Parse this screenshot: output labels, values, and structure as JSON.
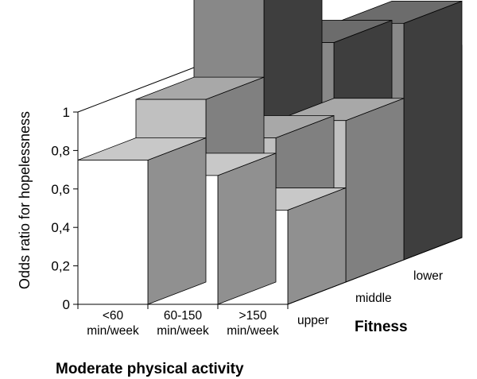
{
  "chart_data": {
    "type": "bar",
    "style": "3d",
    "ylabel": "Odds ratio for hopelessness",
    "xlabel": "Moderate physical activity",
    "zlabel": "Fitness",
    "ylim": [
      0,
      1
    ],
    "yticks": [
      "0",
      "0,2",
      "0,4",
      "0,6",
      "0,8",
      "1"
    ],
    "categories": [
      [
        "<60",
        "min/week"
      ],
      [
        "60-150",
        "min/week"
      ],
      [
        ">150",
        "min/week"
      ]
    ],
    "series": [
      {
        "name": "upper",
        "values": [
          0.75,
          0.67,
          0.49
        ],
        "colors": {
          "front": "#ffffff",
          "top": "#c8c8c8",
          "side": "#909090"
        }
      },
      {
        "name": "middle",
        "values": [
          0.95,
          0.75,
          0.84
        ],
        "colors": {
          "front": "#c0c0c0",
          "top": "#a8a8a8",
          "side": "#808080"
        }
      },
      {
        "name": "lower",
        "values": [
          1.38,
          1.13,
          1.23
        ],
        "colors": {
          "front": "#888888",
          "top": "#6c6c6c",
          "side": "#3e3e3e"
        }
      }
    ]
  }
}
